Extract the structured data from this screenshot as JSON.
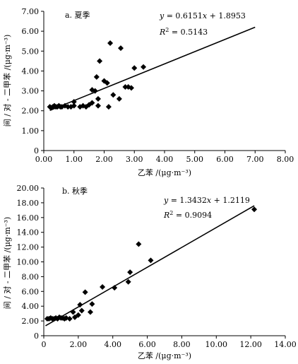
{
  "chart_data": [
    {
      "type": "scatter",
      "panel_label": "a. 夏季",
      "xlabel": "乙苯 /(μg·m⁻³)",
      "ylabel": "间 / 对 - 二甲苯 /(μg·m⁻³)",
      "xlim": [
        0,
        8
      ],
      "ylim": [
        0,
        7
      ],
      "xticks": [
        "0.00",
        "1.00",
        "2.00",
        "3.00",
        "4.00",
        "5.00",
        "6.00",
        "7.00",
        "8.00"
      ],
      "yticks": [
        "0",
        "1.00",
        "2.00",
        "3.00",
        "4.00",
        "5.00",
        "6.00",
        "7.00"
      ],
      "equation_y": "y",
      "equation_rhs": " = 0.6151",
      "equation_x": "x",
      "equation_tail": " + 1.8953",
      "r2_text": "R",
      "r2_sup": "2",
      "r2_value": " = 0.5143",
      "fit": {
        "slope": 0.6151,
        "intercept": 1.8953,
        "x_range": [
          0.2,
          7.0
        ]
      },
      "points": [
        [
          0.2,
          2.2
        ],
        [
          0.25,
          2.15
        ],
        [
          0.3,
          2.2
        ],
        [
          0.35,
          2.25
        ],
        [
          0.4,
          2.2
        ],
        [
          0.45,
          2.2
        ],
        [
          0.5,
          2.25
        ],
        [
          0.55,
          2.2
        ],
        [
          0.6,
          2.2
        ],
        [
          0.7,
          2.25
        ],
        [
          0.8,
          2.2
        ],
        [
          0.9,
          2.2
        ],
        [
          1.0,
          2.25
        ],
        [
          1.0,
          2.45
        ],
        [
          1.2,
          2.2
        ],
        [
          1.3,
          2.25
        ],
        [
          1.4,
          2.2
        ],
        [
          1.5,
          2.3
        ],
        [
          1.6,
          2.4
        ],
        [
          1.6,
          3.05
        ],
        [
          1.7,
          3.0
        ],
        [
          1.75,
          3.7
        ],
        [
          1.8,
          2.25
        ],
        [
          1.8,
          2.6
        ],
        [
          1.85,
          4.5
        ],
        [
          2.0,
          3.5
        ],
        [
          2.1,
          3.4
        ],
        [
          2.15,
          2.2
        ],
        [
          2.2,
          5.4
        ],
        [
          2.3,
          2.8
        ],
        [
          2.5,
          2.6
        ],
        [
          2.55,
          5.15
        ],
        [
          2.7,
          3.2
        ],
        [
          2.8,
          3.2
        ],
        [
          2.9,
          3.15
        ],
        [
          3.0,
          4.15
        ],
        [
          3.3,
          4.2
        ]
      ]
    },
    {
      "type": "scatter",
      "panel_label": "b. 秋季",
      "xlabel": "乙苯 /(μg·m⁻³)",
      "ylabel": "间 / 对 - 二甲苯 /(μg·m⁻³)",
      "xlim": [
        0,
        14
      ],
      "ylim": [
        0,
        20
      ],
      "xticks": [
        "0",
        "2.00",
        "4.00",
        "6.00",
        "8.00",
        "10.00",
        "12.00",
        "14.00"
      ],
      "yticks": [
        "0",
        "2.00",
        "4.00",
        "6.00",
        "8.00",
        "10.00",
        "12.00",
        "14.00",
        "16.00",
        "18.00",
        "20.00"
      ],
      "equation_y": "y",
      "equation_rhs": " = 1.3432",
      "equation_x": "x",
      "equation_tail": " + 1.2119",
      "r2_text": "R",
      "r2_sup": "2",
      "r2_value": " = 0.9094",
      "fit": {
        "slope": 1.3432,
        "intercept": 1.2119,
        "x_range": [
          0.1,
          12.2
        ]
      },
      "points": [
        [
          0.2,
          2.3
        ],
        [
          0.3,
          2.3
        ],
        [
          0.4,
          2.4
        ],
        [
          0.5,
          2.3
        ],
        [
          0.6,
          2.3
        ],
        [
          0.7,
          2.4
        ],
        [
          0.8,
          2.3
        ],
        [
          0.9,
          2.5
        ],
        [
          1.0,
          2.4
        ],
        [
          1.1,
          2.4
        ],
        [
          1.2,
          2.3
        ],
        [
          1.3,
          2.4
        ],
        [
          1.5,
          2.3
        ],
        [
          1.7,
          3.2
        ],
        [
          1.8,
          2.5
        ],
        [
          2.0,
          2.8
        ],
        [
          2.1,
          4.2
        ],
        [
          2.2,
          3.4
        ],
        [
          2.4,
          5.9
        ],
        [
          2.7,
          3.2
        ],
        [
          2.8,
          4.3
        ],
        [
          3.4,
          6.6
        ],
        [
          4.1,
          6.5
        ],
        [
          4.9,
          7.3
        ],
        [
          5.0,
          8.6
        ],
        [
          5.5,
          12.4
        ],
        [
          6.2,
          10.2
        ],
        [
          12.2,
          17.1
        ]
      ]
    }
  ]
}
